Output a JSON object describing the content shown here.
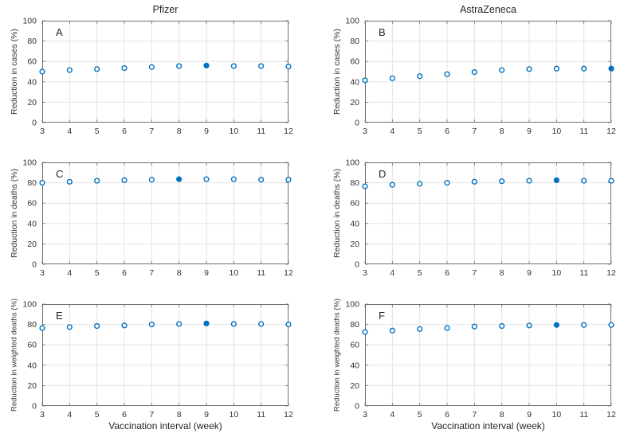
{
  "figure": {
    "xlabel": "Vaccination interval (week)",
    "column_titles": [
      "Pfizer",
      "AstraZeneca"
    ]
  },
  "colors": {
    "marker": "#0072BD",
    "axis": "#6e6e6e",
    "grid": "#e4e4e4",
    "text": "#333333",
    "background": "#ffffff"
  },
  "chart_data": [
    {
      "type": "scatter",
      "panel": "A",
      "title": "Pfizer",
      "ylabel": "Reduction in cases (%)",
      "xlabel": "",
      "x": [
        3,
        4,
        5,
        6,
        7,
        8,
        9,
        10,
        11,
        12
      ],
      "y": [
        50,
        51.5,
        52.5,
        53.5,
        54.5,
        55.5,
        56,
        55.5,
        55.5,
        55
      ],
      "filled_x": 9,
      "xlim": [
        3,
        12
      ],
      "ylim": [
        0,
        100
      ],
      "xticks": [
        3,
        4,
        5,
        6,
        7,
        8,
        9,
        10,
        11,
        12
      ],
      "yticks": [
        0,
        20,
        40,
        60,
        80,
        100
      ],
      "grid": true,
      "marker": "open-circle"
    },
    {
      "type": "scatter",
      "panel": "B",
      "title": "AstraZeneca",
      "ylabel": "Reduction in cases (%)",
      "xlabel": "",
      "x": [
        3,
        4,
        5,
        6,
        7,
        8,
        9,
        10,
        11,
        12
      ],
      "y": [
        41.5,
        43.5,
        45.5,
        47.5,
        49.5,
        51.5,
        52.5,
        53,
        53,
        53
      ],
      "filled_x": 12,
      "xlim": [
        3,
        12
      ],
      "ylim": [
        0,
        100
      ],
      "xticks": [
        3,
        4,
        5,
        6,
        7,
        8,
        9,
        10,
        11,
        12
      ],
      "yticks": [
        0,
        20,
        40,
        60,
        80,
        100
      ],
      "grid": true,
      "marker": "open-circle"
    },
    {
      "type": "scatter",
      "panel": "C",
      "title": "",
      "ylabel": "Reduction in deaths (%)",
      "xlabel": "",
      "x": [
        3,
        4,
        5,
        6,
        7,
        8,
        9,
        10,
        11,
        12
      ],
      "y": [
        80,
        81,
        82,
        82.5,
        83,
        83.5,
        83.5,
        83.5,
        83,
        83
      ],
      "filled_x": 8,
      "xlim": [
        3,
        12
      ],
      "ylim": [
        0,
        100
      ],
      "xticks": [
        3,
        4,
        5,
        6,
        7,
        8,
        9,
        10,
        11,
        12
      ],
      "yticks": [
        0,
        20,
        40,
        60,
        80,
        100
      ],
      "grid": true,
      "marker": "open-circle"
    },
    {
      "type": "scatter",
      "panel": "D",
      "title": "",
      "ylabel": "Reduction in deaths (%)",
      "xlabel": "",
      "x": [
        3,
        4,
        5,
        6,
        7,
        8,
        9,
        10,
        11,
        12
      ],
      "y": [
        76.5,
        78,
        79,
        80,
        81,
        81.5,
        82,
        82.5,
        82,
        82
      ],
      "filled_x": 10,
      "xlim": [
        3,
        12
      ],
      "ylim": [
        0,
        100
      ],
      "xticks": [
        3,
        4,
        5,
        6,
        7,
        8,
        9,
        10,
        11,
        12
      ],
      "yticks": [
        0,
        20,
        40,
        60,
        80,
        100
      ],
      "grid": true,
      "marker": "open-circle"
    },
    {
      "type": "scatter",
      "panel": "E",
      "title": "",
      "ylabel": "Reduction in weighted deaths (%)",
      "xlabel": "Vaccination interval (week)",
      "x": [
        3,
        4,
        5,
        6,
        7,
        8,
        9,
        10,
        11,
        12
      ],
      "y": [
        76.5,
        77.5,
        78.5,
        79,
        80,
        80.5,
        81,
        80.5,
        80.5,
        80
      ],
      "filled_x": 9,
      "xlim": [
        3,
        12
      ],
      "ylim": [
        0,
        100
      ],
      "xticks": [
        3,
        4,
        5,
        6,
        7,
        8,
        9,
        10,
        11,
        12
      ],
      "yticks": [
        0,
        20,
        40,
        60,
        80,
        100
      ],
      "grid": true,
      "marker": "open-circle"
    },
    {
      "type": "scatter",
      "panel": "F",
      "title": "",
      "ylabel": "Reduction in weighted deaths (%)",
      "xlabel": "Vaccination interval (week)",
      "x": [
        3,
        4,
        5,
        6,
        7,
        8,
        9,
        10,
        11,
        12
      ],
      "y": [
        72.5,
        74,
        75.5,
        76.5,
        78,
        78.5,
        79,
        79.5,
        79.5,
        79.5
      ],
      "filled_x": 10,
      "xlim": [
        3,
        12
      ],
      "ylim": [
        0,
        100
      ],
      "xticks": [
        3,
        4,
        5,
        6,
        7,
        8,
        9,
        10,
        11,
        12
      ],
      "yticks": [
        0,
        20,
        40,
        60,
        80,
        100
      ],
      "grid": true,
      "marker": "open-circle"
    }
  ]
}
